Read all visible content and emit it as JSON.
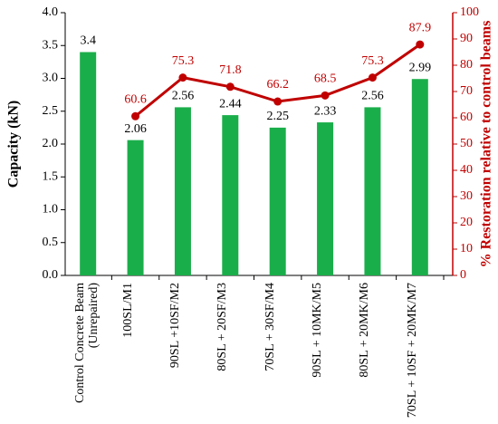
{
  "chart_data": {
    "type": "bar",
    "y_label": "Capacity (kN)",
    "y2_label": "% Restoration relative to control beams",
    "categories": [
      "Control Concrete Beam (Unrepaired)",
      "100SL/M1",
      "90SL +10SF/M2",
      "80SL + 20SF/M3",
      "70SL + 30SF/M4",
      "90SL + 10MK/M5",
      "80SL + 20MK/M6",
      "70SL + 10SF + 20MK/M7"
    ],
    "series": [
      {
        "type": "bar",
        "color": "#1aae4a",
        "values": [
          3.4,
          2.06,
          2.56,
          2.44,
          2.25,
          2.33,
          2.56,
          2.99
        ]
      },
      {
        "type": "line",
        "axis": "y2",
        "color": "#c00000",
        "values": [
          null,
          60.6,
          75.3,
          71.8,
          66.2,
          68.5,
          75.3,
          87.9
        ]
      }
    ],
    "ylim": [
      0,
      4
    ],
    "yticks": [
      {
        "value": 0,
        "label": "0.0"
      },
      {
        "value": 0.5,
        "label": "0.5"
      },
      {
        "value": 1,
        "label": "1.0"
      },
      {
        "value": 1.5,
        "label": "1.5"
      },
      {
        "value": 2,
        "label": "2.0"
      },
      {
        "value": 2.5,
        "label": "2.5"
      },
      {
        "value": 3,
        "label": "3.0"
      },
      {
        "value": 3.5,
        "label": "3.5"
      },
      {
        "value": 4,
        "label": "4.0"
      }
    ],
    "y2lim": [
      0,
      100
    ],
    "y2ticks": [
      0,
      10,
      20,
      30,
      40,
      50,
      60,
      70,
      80,
      90,
      100
    ],
    "grid": false
  }
}
